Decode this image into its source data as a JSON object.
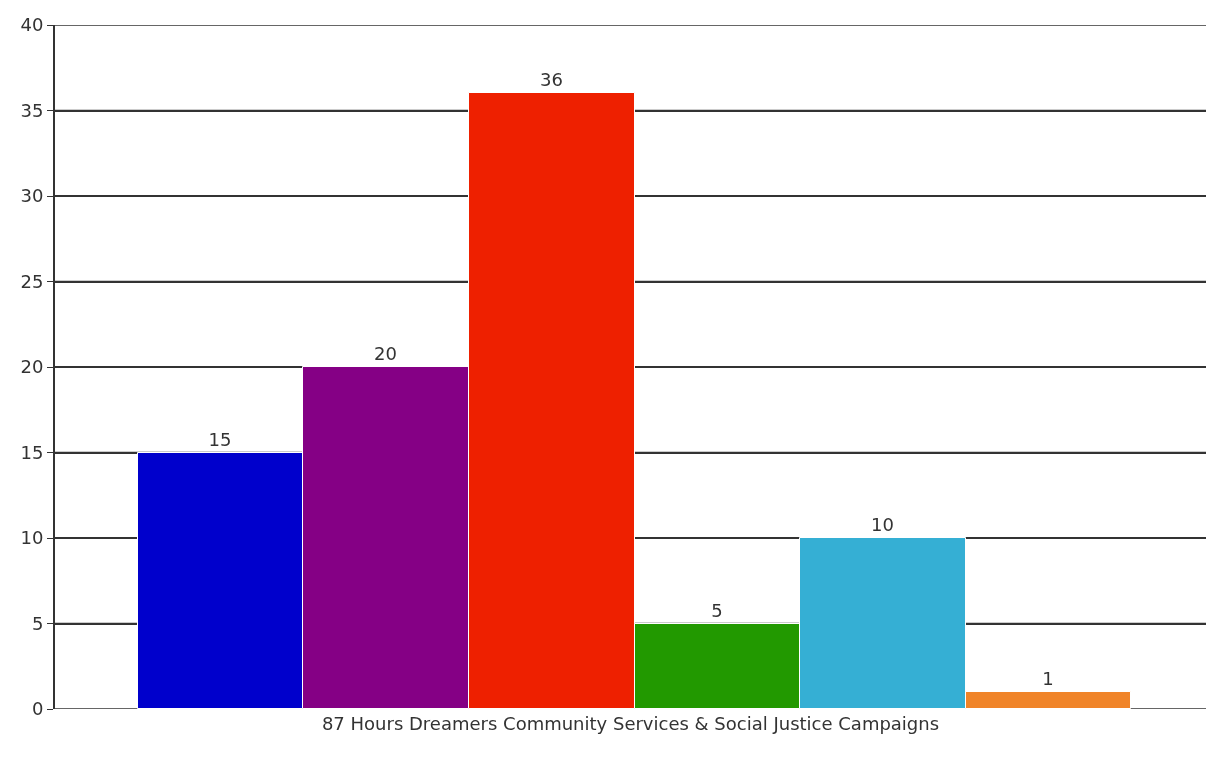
{
  "chart_data": {
    "type": "bar",
    "xlabel": "87 Hours Dreamers Community Services & Social Justice Campaigns",
    "categories": [
      null,
      null,
      null,
      null,
      null,
      null
    ],
    "values": [
      15,
      20,
      36,
      5,
      10,
      1
    ],
    "colors": [
      "#0000cc",
      "#850085",
      "#ee2000",
      "#229900",
      "#35afd4",
      "#f08428"
    ],
    "ylim": [
      0,
      40
    ],
    "yticks": [
      0,
      5,
      10,
      15,
      20,
      25,
      30,
      35,
      40
    ],
    "grid": "y",
    "data_labels": true
  }
}
